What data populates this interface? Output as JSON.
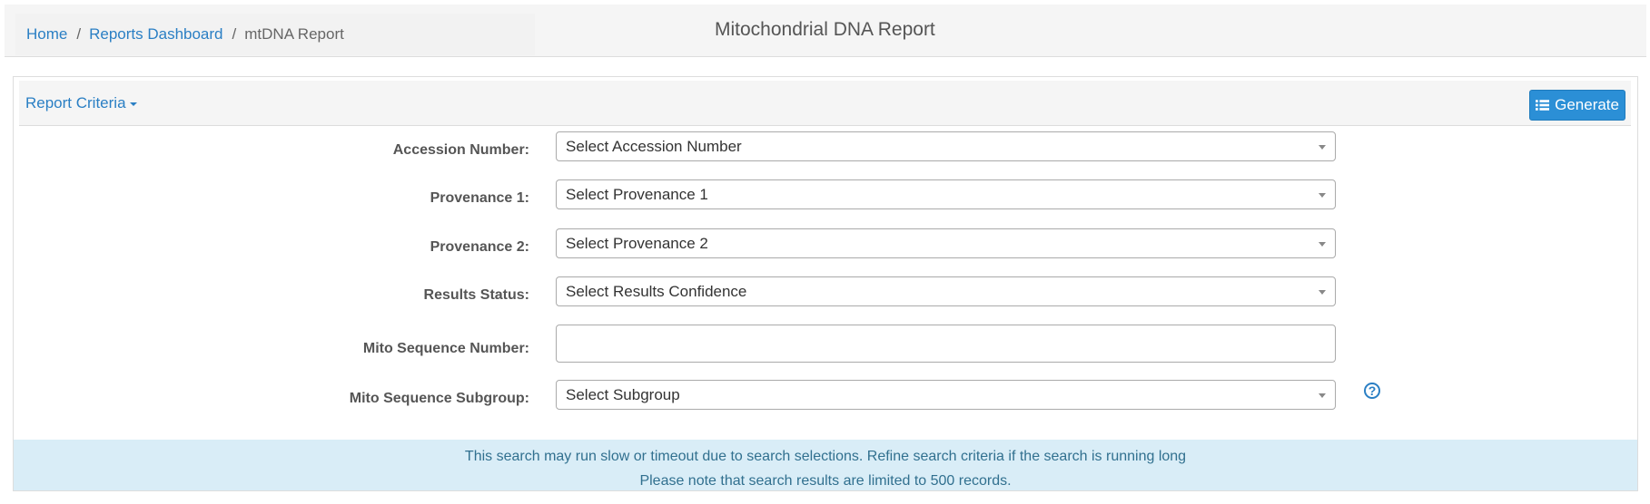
{
  "breadcrumb": {
    "home": "Home",
    "dashboard": "Reports Dashboard",
    "separator": "/",
    "current": "mtDNA Report"
  },
  "page_title": "Mitochondrial DNA Report",
  "panel": {
    "criteria_label": "Report Criteria",
    "generate_label": "Generate"
  },
  "form": {
    "accession": {
      "label": "Accession Number:",
      "value": "Select Accession Number"
    },
    "provenance1": {
      "label": "Provenance 1:",
      "value": "Select Provenance 1"
    },
    "provenance2": {
      "label": "Provenance 2:",
      "value": "Select Provenance 2"
    },
    "results_status": {
      "label": "Results Status:",
      "value": "Select Results Confidence"
    },
    "mito_sequence_number": {
      "label": "Mito Sequence Number:",
      "value": ""
    },
    "mito_sequence_subgroup": {
      "label": "Mito Sequence Subgroup:",
      "value": "Select Subgroup"
    },
    "help_glyph": "?"
  },
  "alert": {
    "line1": "This search may run slow or timeout due to search selections. Refine search criteria if the search is running long",
    "line2": "Please note that search results are limited to 500 records."
  },
  "colors": {
    "link": "#2a7fc4",
    "primary_button": "#2b8fd6",
    "alert_bg": "#d9edf7",
    "alert_text": "#31708f"
  },
  "icons": {
    "generate": "list-icon",
    "criteria_toggle": "caret-down-icon",
    "select_arrow": "chevron-down-icon",
    "help": "question-circle-icon"
  }
}
